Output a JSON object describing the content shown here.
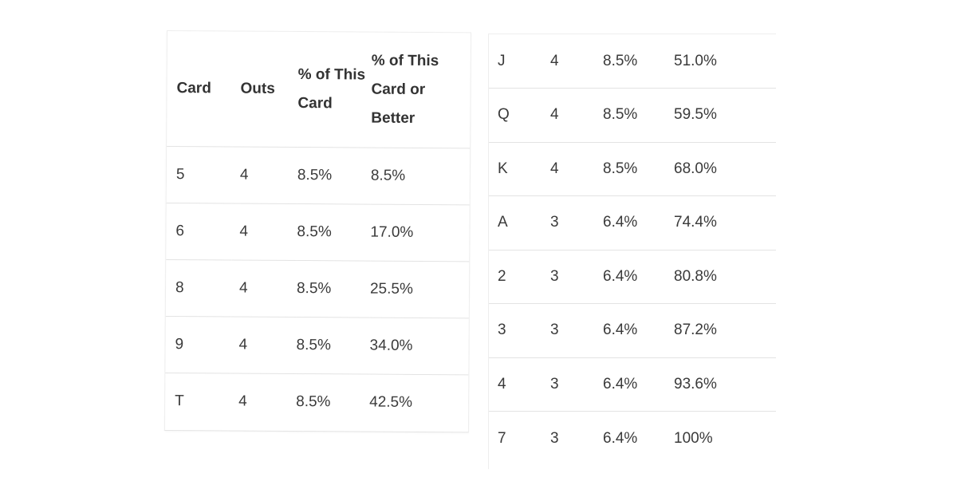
{
  "table": {
    "headers": {
      "card": "Card",
      "outs": "Outs",
      "pct_this_card": "% of This Card",
      "pct_this_card_or_better": "% of This Card or Better"
    },
    "left_rows": [
      {
        "card": "5",
        "outs": "4",
        "pct": "8.5%",
        "cumulative": "8.5%"
      },
      {
        "card": "6",
        "outs": "4",
        "pct": "8.5%",
        "cumulative": "17.0%"
      },
      {
        "card": "8",
        "outs": "4",
        "pct": "8.5%",
        "cumulative": "25.5%"
      },
      {
        "card": "9",
        "outs": "4",
        "pct": "8.5%",
        "cumulative": "34.0%"
      },
      {
        "card": "T",
        "outs": "4",
        "pct": "8.5%",
        "cumulative": "42.5%"
      }
    ],
    "right_rows": [
      {
        "card": "J",
        "outs": "4",
        "pct": "8.5%",
        "cumulative": "51.0%"
      },
      {
        "card": "Q",
        "outs": "4",
        "pct": "8.5%",
        "cumulative": "59.5%"
      },
      {
        "card": "K",
        "outs": "4",
        "pct": "8.5%",
        "cumulative": "68.0%"
      },
      {
        "card": "A",
        "outs": "3",
        "pct": "6.4%",
        "cumulative": "74.4%"
      },
      {
        "card": "2",
        "outs": "3",
        "pct": "6.4%",
        "cumulative": "80.8%"
      },
      {
        "card": "3",
        "outs": "3",
        "pct": "6.4%",
        "cumulative": "87.2%"
      },
      {
        "card": "4",
        "outs": "3",
        "pct": "6.4%",
        "cumulative": "93.6%"
      },
      {
        "card": "7",
        "outs": "3",
        "pct": "6.4%",
        "cumulative": "100%"
      }
    ]
  }
}
